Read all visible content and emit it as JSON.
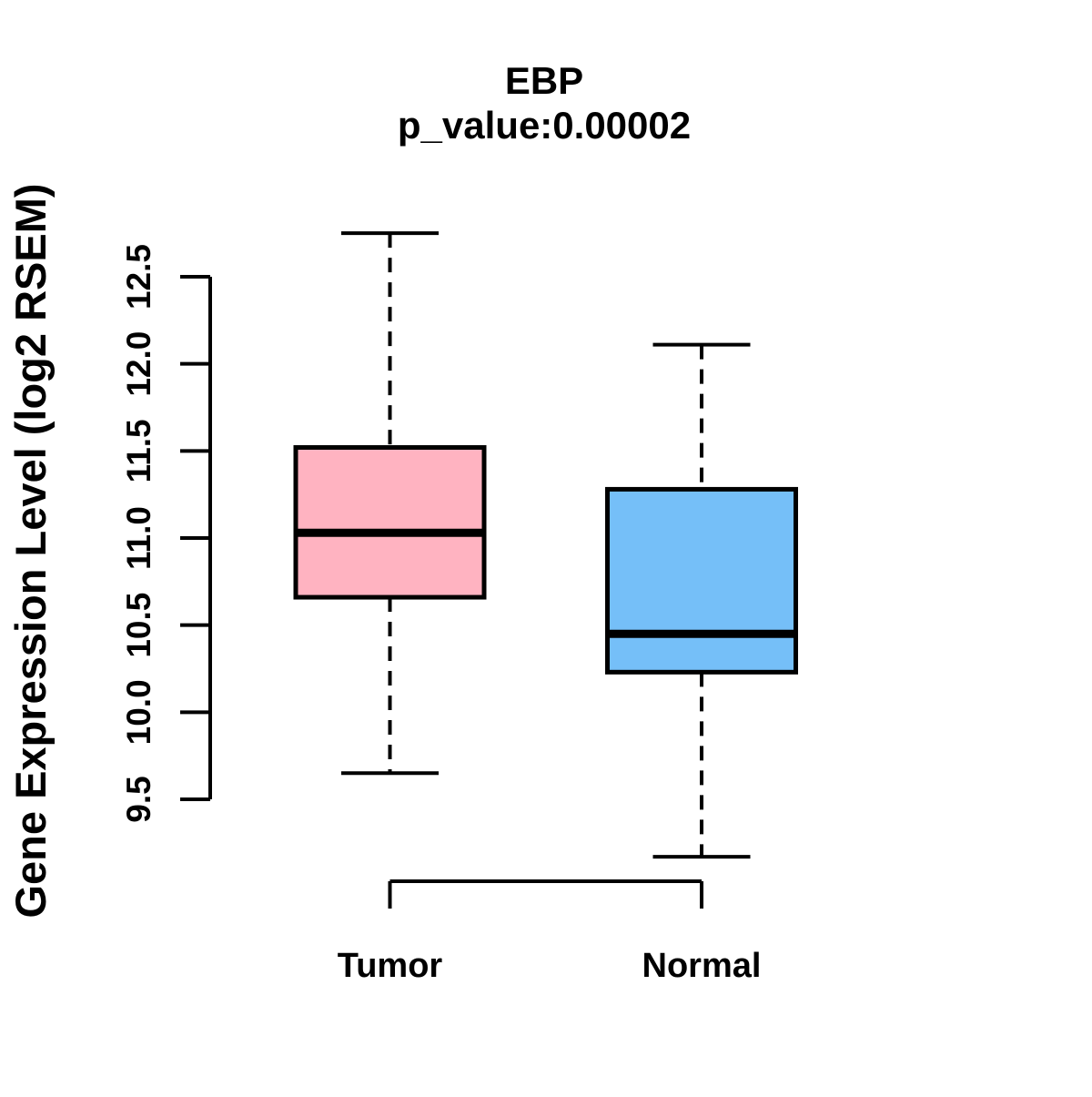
{
  "figure": {
    "title": "EBP",
    "subtitle": "p_value:0.00002",
    "y_axis_title": "Gene Expression Level (log2 RSEM)"
  },
  "chart_data": {
    "type": "boxplot",
    "title": "EBP",
    "subtitle": "p_value:0.00002",
    "ylabel": "Gene Expression Level (log2 RSEM)",
    "xlabel": "",
    "categories": [
      "Tumor",
      "Normal"
    ],
    "y_ticks": [
      9.5,
      10.0,
      10.5,
      11.0,
      11.5,
      12.0,
      12.5
    ],
    "y_tick_labels": [
      "9.5",
      "10.0",
      "10.5",
      "11.0",
      "11.5",
      "12.0",
      "12.5"
    ],
    "ylim": [
      9.0,
      12.9
    ],
    "grid": false,
    "legend": "none",
    "series": [
      {
        "name": "Tumor",
        "whisker_low": 9.65,
        "q1": 10.66,
        "median": 11.03,
        "q3": 11.52,
        "whisker_high": 12.75,
        "fill_color": "#FFB3C1"
      },
      {
        "name": "Normal",
        "whisker_low": 9.17,
        "q1": 10.23,
        "median": 10.45,
        "q3": 11.28,
        "whisker_high": 12.11,
        "fill_color": "#75BFF8"
      }
    ],
    "stroke_color": "#000000",
    "background_color": "#FFFFFF",
    "whisker_style": "dashed"
  }
}
